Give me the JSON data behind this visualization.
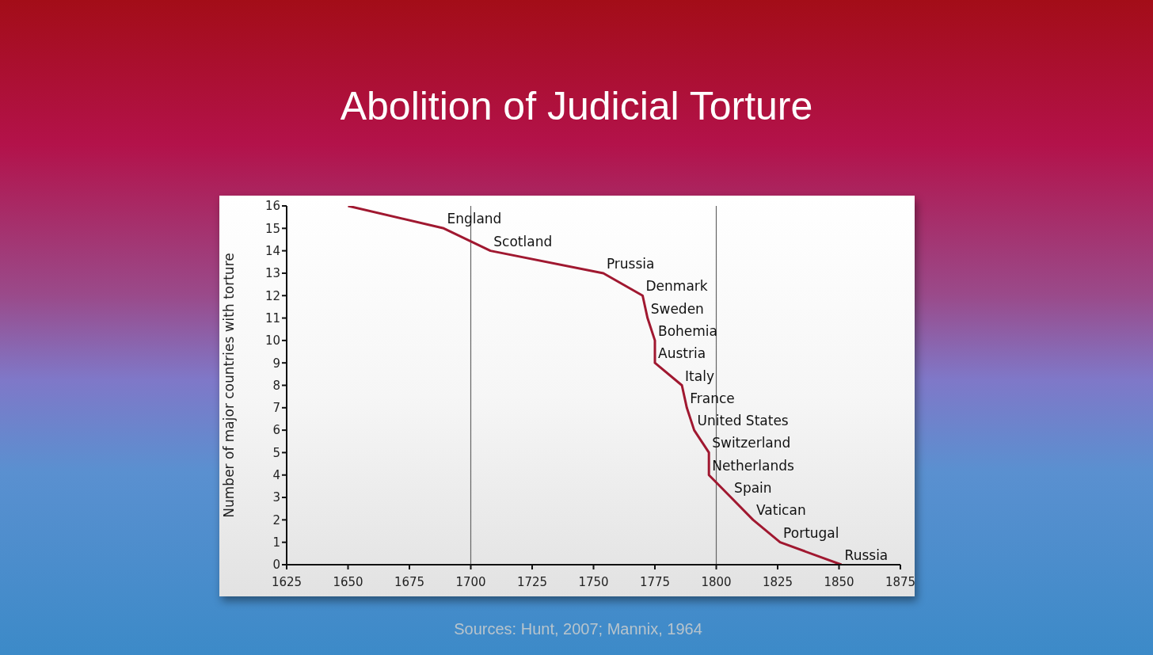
{
  "chart_data": {
    "type": "line",
    "title": "Abolition of Judicial Torture",
    "ylabel": "Number of major countries with torture",
    "x": [
      1650,
      1689,
      1708,
      1754,
      1770,
      1772,
      1775,
      1775,
      1786,
      1788,
      1791,
      1797,
      1797,
      1806,
      1815,
      1826,
      1851
    ],
    "series": [
      {
        "color": "#a01830",
        "values": [
          16,
          15,
          14,
          13,
          12,
          11,
          10,
          9,
          8,
          7,
          6,
          5,
          4,
          3,
          2,
          1,
          0
        ]
      }
    ],
    "xlim": [
      1625,
      1875
    ],
    "xticks": [
      1625,
      1650,
      1675,
      1700,
      1725,
      1750,
      1775,
      1800,
      1825,
      1850,
      1875
    ],
    "ylim": [
      0,
      16
    ],
    "yticks": [
      0,
      1,
      2,
      3,
      4,
      5,
      6,
      7,
      8,
      9,
      10,
      11,
      12,
      13,
      14,
      15,
      16
    ],
    "marker": "none",
    "line_style": "solid",
    "ref_lines": [
      {
        "axis": "x",
        "value": 1700,
        "color": "#666666"
      },
      {
        "axis": "x",
        "value": 1800,
        "color": "#666666"
      }
    ],
    "annotations": [
      {
        "text": "England",
        "x": 1689,
        "y": 15
      },
      {
        "text": "Scotland",
        "x": 1708,
        "y": 14
      },
      {
        "text": "Prussia",
        "x": 1754,
        "y": 13
      },
      {
        "text": "Denmark",
        "x": 1770,
        "y": 12
      },
      {
        "text": "Sweden",
        "x": 1772,
        "y": 11
      },
      {
        "text": "Bohemia",
        "x": 1775,
        "y": 10
      },
      {
        "text": "Austria",
        "x": 1775,
        "y": 9
      },
      {
        "text": "Italy",
        "x": 1786,
        "y": 8
      },
      {
        "text": "France",
        "x": 1788,
        "y": 7
      },
      {
        "text": "United States",
        "x": 1791,
        "y": 6
      },
      {
        "text": "Switzerland",
        "x": 1797,
        "y": 5
      },
      {
        "text": "Netherlands",
        "x": 1797,
        "y": 4
      },
      {
        "text": "Spain",
        "x": 1806,
        "y": 3
      },
      {
        "text": "Vatican",
        "x": 1815,
        "y": 2
      },
      {
        "text": "Portugal",
        "x": 1826,
        "y": 1
      },
      {
        "text": "Russia",
        "x": 1851,
        "y": 0
      },
      "Sources: Hunt, 2007; Mannix, 1964"
    ]
  }
}
